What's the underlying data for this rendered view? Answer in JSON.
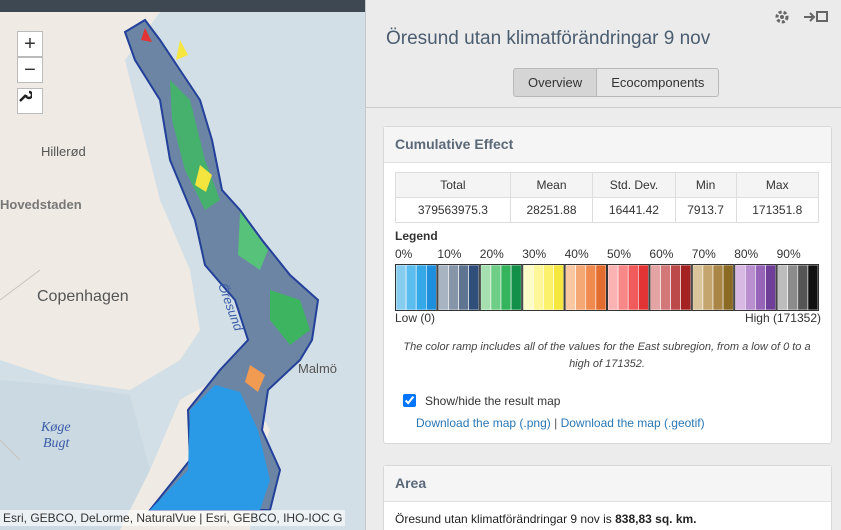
{
  "map": {
    "zoom_in": "+",
    "zoom_out": "−",
    "labels": [
      "Hillerød",
      "Hovedstaden",
      "Copenhagen",
      "Malmö",
      "Køge",
      "Bugt",
      "Öresund"
    ],
    "attribution": "Esri, GEBCO, DeLorme, NaturalVue | Esri, GEBCO, IHO-IOC G"
  },
  "panel": {
    "title": "Öresund utan klimatförändringar 9 nov",
    "tabs": [
      "Overview",
      "Ecocomponents"
    ],
    "cumulative": {
      "heading": "Cumulative Effect",
      "table": {
        "headers": [
          "Total",
          "Mean",
          "Std. Dev.",
          "Min",
          "Max"
        ],
        "rows": [
          [
            "379563975.3",
            "28251.88",
            "16441.42",
            "7913.7",
            "171351.8"
          ]
        ]
      },
      "legend": {
        "title": "Legend",
        "percents": [
          "0%",
          "10%",
          "20%",
          "30%",
          "40%",
          "50%",
          "60%",
          "70%",
          "80%",
          "90%"
        ],
        "colors": [
          [
            "#87cdf0",
            "#5cbdef",
            "#35a9e8",
            "#1d8fdc"
          ],
          [
            "#a9b4c2",
            "#8795a8",
            "#5f7490",
            "#2f4f7a"
          ],
          [
            "#a6e0b0",
            "#6fce86",
            "#34b45c",
            "#12904a"
          ],
          [
            "#fdfbc8",
            "#fdf79a",
            "#fbf16b",
            "#f5e640"
          ],
          [
            "#f9c7a1",
            "#f6a874",
            "#f08a4e",
            "#e36d2e"
          ],
          [
            "#fbb2b2",
            "#f88787",
            "#f15b5b",
            "#e23434"
          ],
          [
            "#e4a4a4",
            "#d27878",
            "#bd4a4a",
            "#a52222"
          ],
          [
            "#d9c49b",
            "#c4a56d",
            "#a98645",
            "#8b6a24"
          ],
          [
            "#d8b9e3",
            "#b98fd0",
            "#9665b8",
            "#6f3e98"
          ],
          [
            "#bdbdbd",
            "#8c8c8c",
            "#555555",
            "#111111"
          ]
        ],
        "low": "Low (0)",
        "high": "High (171352)"
      },
      "note": "The color ramp includes all of the values for the East subregion, from a low of 0 to a high of 171352.",
      "toggle": "Show/hide the result map",
      "links": [
        "Download the map (.png)",
        "Download the map (.geotif)"
      ],
      "separator": "|"
    },
    "area": {
      "heading": "Area",
      "text": "Öresund utan klimatförändringar 9 nov is ",
      "value": "838,83 sq. km."
    }
  }
}
